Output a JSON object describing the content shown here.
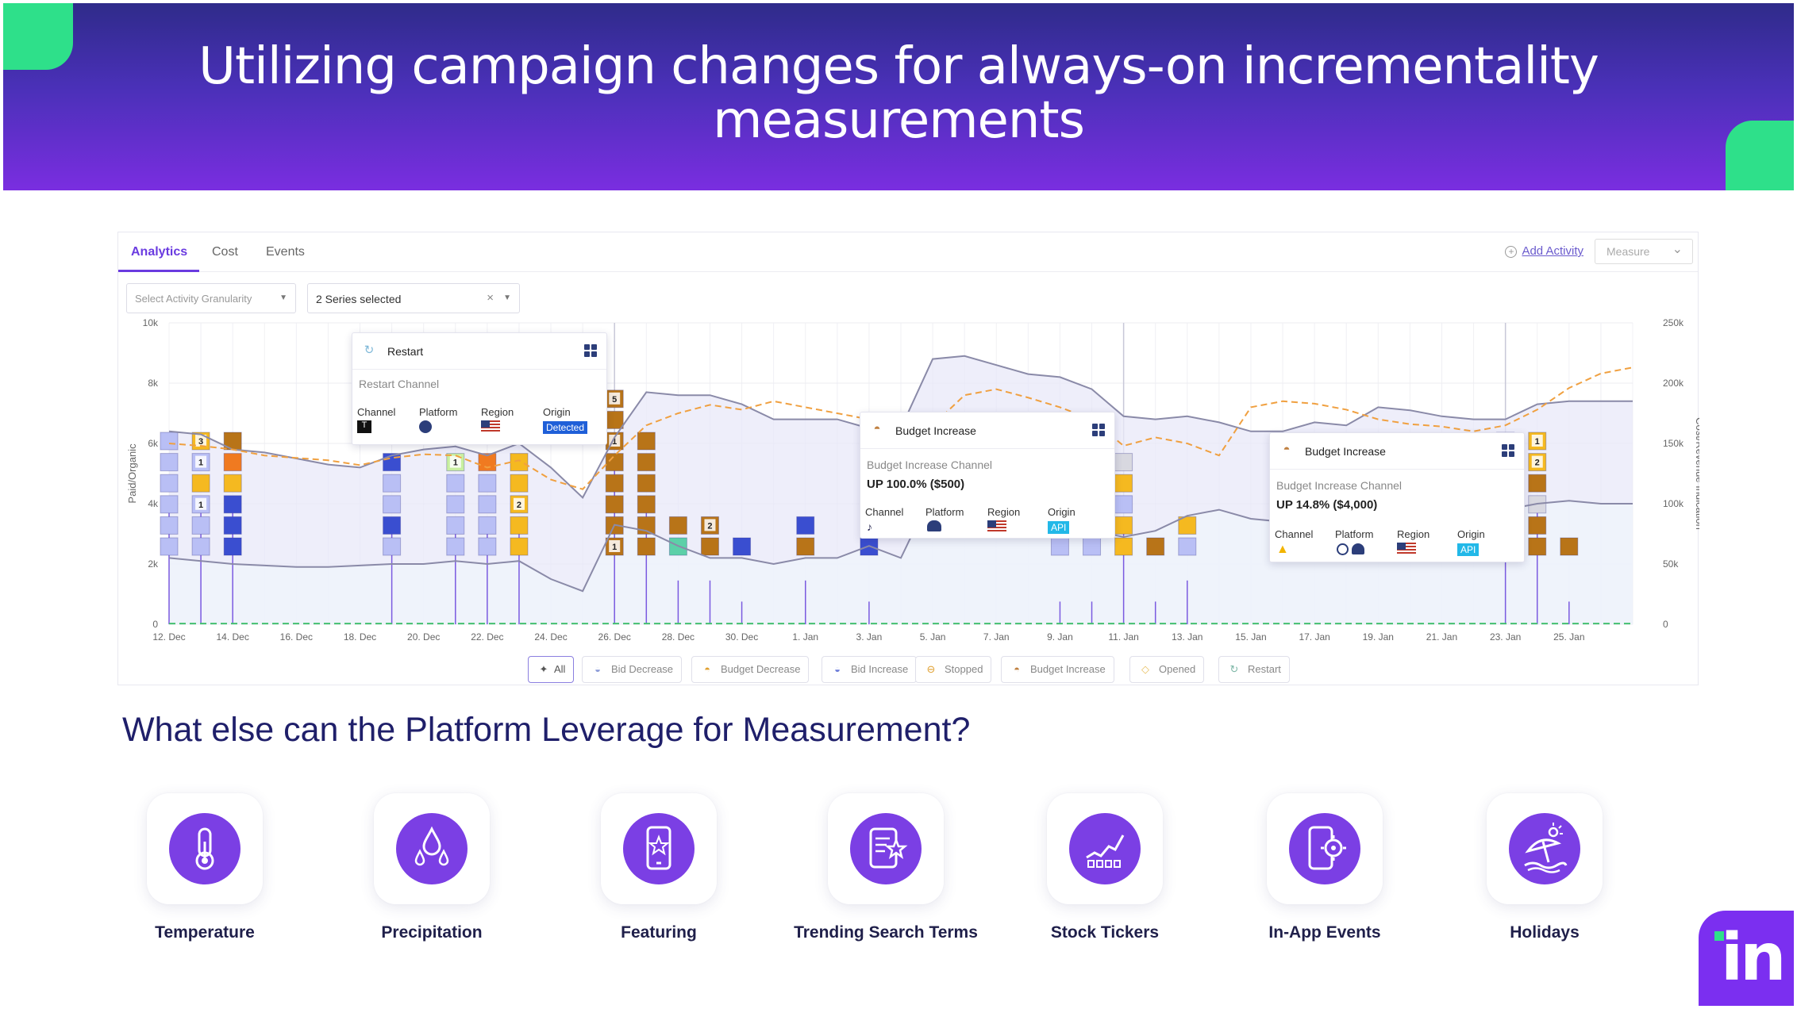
{
  "header": {
    "title_line1": "Utilizing campaign changes for always-on incrementality",
    "title_line2": "measurements",
    "accent_color": "#2ee08a"
  },
  "analytics": {
    "tabs": [
      {
        "label": "Analytics",
        "active": true
      },
      {
        "label": "Cost",
        "active": false
      },
      {
        "label": "Events",
        "active": false
      }
    ],
    "add_activity_label": "Add Activity",
    "measure_select_value": "Measure",
    "granularity_select_placeholder": "Select Activity Granularity",
    "series_select_value": "2 Series selected",
    "series_clear_icon": "×",
    "filter_pills": [
      {
        "label": "All",
        "icon": "✦",
        "active": true
      },
      {
        "label": "Bid Decrease",
        "icon": "◒"
      },
      {
        "label": "Budget Decrease",
        "icon": "◓"
      },
      {
        "label": "Bid Increase",
        "icon": "◒"
      },
      {
        "label": "Stopped",
        "icon": "⊖"
      },
      {
        "label": "Budget Increase",
        "icon": "◓"
      },
      {
        "label": "Opened",
        "icon": "◇"
      },
      {
        "label": "Restart",
        "icon": "↻"
      }
    ],
    "tooltips": [
      {
        "title": "Restart",
        "subtitle": "Restart Channel",
        "headline": "",
        "fields": {
          "channel": "Channel",
          "platform": "Platform",
          "region": "Region",
          "origin": "Origin"
        },
        "origin_value": "Detected",
        "origin_color": "#1f5fd8"
      },
      {
        "title": "Budget Increase",
        "subtitle": "Budget Increase Channel",
        "headline": "UP 100.0% ($500)",
        "fields": {
          "channel": "Channel",
          "platform": "Platform",
          "region": "Region",
          "origin": "Origin"
        },
        "origin_value": "API",
        "origin_color": "#22b8e8"
      },
      {
        "title": "Budget Increase",
        "subtitle": "Budget Increase Channel",
        "headline": "UP 14.8% ($4,000)",
        "fields": {
          "channel": "Channel",
          "platform": "Platform",
          "region": "Region",
          "origin": "Origin"
        },
        "origin_value": "API",
        "origin_color": "#22b8e8"
      }
    ]
  },
  "chart_data": {
    "type": "area",
    "title": "",
    "ylabel_left": "Paid/Organic",
    "ylabel_right": "Cost/Revenue Indication",
    "ylim_left": [
      0,
      10000
    ],
    "ylim_right": [
      0,
      250000
    ],
    "y_ticks_left": [
      "0",
      "2k",
      "4k",
      "6k",
      "8k",
      "10k"
    ],
    "y_ticks_right": [
      "0",
      "50k",
      "100k",
      "150k",
      "200k",
      "250k"
    ],
    "x_tick_labels": [
      "12. Dec",
      "14. Dec",
      "16. Dec",
      "18. Dec",
      "20. Dec",
      "22. Dec",
      "24. Dec",
      "26. Dec",
      "28. Dec",
      "30. Dec",
      "1. Jan",
      "3. Jan",
      "5. Jan",
      "7. Jan",
      "9. Jan",
      "11. Jan",
      "13. Jan",
      "15. Jan",
      "17. Jan",
      "19. Jan",
      "21. Jan",
      "23. Jan",
      "25. Jan"
    ],
    "x_days": [
      0,
      1,
      2,
      3,
      4,
      5,
      6,
      7,
      8,
      9,
      10,
      11,
      12,
      13,
      14,
      15,
      16,
      17,
      18,
      19,
      20,
      21,
      22,
      23,
      24,
      25,
      26,
      27,
      28,
      29,
      30,
      31,
      32,
      33,
      34,
      35,
      36,
      37,
      38,
      39,
      40,
      41,
      42,
      43,
      44,
      45,
      46
    ],
    "series": [
      {
        "name": "Paid",
        "axis": "left",
        "color": "#8a8aa8",
        "values": [
          6400,
          6300,
          5800,
          5700,
          5500,
          5300,
          5200,
          5600,
          5800,
          5900,
          5600,
          6000,
          5200,
          4200,
          6200,
          7700,
          7600,
          7600,
          7300,
          6800,
          6800,
          6800,
          6500,
          6500,
          8800,
          8900,
          8600,
          8300,
          8200,
          7800,
          6900,
          6800,
          6900,
          6700,
          6400,
          6400,
          6700,
          6600,
          7200,
          7100,
          6900,
          6800,
          6800,
          7300,
          7400,
          7400,
          7400
        ]
      },
      {
        "name": "Organic",
        "axis": "left",
        "color": "#8a8aa8",
        "values": [
          2200,
          2100,
          2000,
          1950,
          1900,
          1900,
          1950,
          2000,
          2000,
          2100,
          2000,
          2100,
          1500,
          1100,
          3300,
          3100,
          2600,
          2200,
          2200,
          2000,
          2200,
          2200,
          2600,
          2200,
          4400,
          4200,
          3800,
          3500,
          3400,
          3100,
          2900,
          3100,
          3600,
          3800,
          3500,
          3400,
          3800,
          3700,
          4100,
          4000,
          3800,
          3600,
          3800,
          4000,
          4100,
          4000,
          4000
        ]
      },
      {
        "name": "Cost",
        "axis": "right",
        "color": "#f0a040",
        "dashed": true,
        "values": [
          150000,
          148000,
          145000,
          140000,
          138000,
          136000,
          132000,
          138000,
          141000,
          140000,
          130000,
          136000,
          120000,
          112000,
          140000,
          165000,
          175000,
          182000,
          178000,
          185000,
          180000,
          175000,
          170000,
          160000,
          165000,
          190000,
          195000,
          188000,
          180000,
          170000,
          148000,
          155000,
          150000,
          140000,
          180000,
          185000,
          183000,
          178000,
          170000,
          166000,
          164000,
          160000,
          165000,
          178000,
          196000,
          208000,
          213000
        ]
      },
      {
        "name": "Revenue",
        "axis": "right",
        "color": "#44c070",
        "dashed": true,
        "values": [
          600,
          600,
          600,
          600,
          600,
          600,
          600,
          600,
          600,
          600,
          600,
          600,
          600,
          600,
          600,
          600,
          600,
          600,
          600,
          600,
          600,
          600,
          600,
          600,
          600,
          600,
          600,
          600,
          600,
          600,
          600,
          600,
          600,
          600,
          600,
          600,
          600,
          600,
          600,
          600,
          600,
          600,
          600,
          600,
          600,
          600,
          600
        ]
      }
    ],
    "event_markers": [
      {
        "day": 0,
        "stack": [
          "#b9bff5",
          "#b9bff5",
          "#b9bff5",
          "#b9bff5",
          "#b9bff5",
          "#b9bff5"
        ]
      },
      {
        "day": 1,
        "stack": [
          "#b9bff5",
          "#b9bff5",
          "#b9bff5",
          "#f5b920",
          "#b9bff5",
          "#f5b920"
        ],
        "labels": {
          "2": "1",
          "4": "1",
          "5": "3"
        }
      },
      {
        "day": 2,
        "stack": [
          "#3a4ed0",
          "#3a4ed0",
          "#3a4ed0",
          "#f5b920",
          "#f07a20",
          "#b87418"
        ]
      },
      {
        "day": 7,
        "stack": [
          "#b9bff5",
          "#3a4ed0",
          "#b9bff5",
          "#b9bff5",
          "#3a4ed0"
        ]
      },
      {
        "day": 9,
        "stack": [
          "#b9bff5",
          "#b9bff5",
          "#b9bff5",
          "#b9bff5",
          "#c8f0a0"
        ],
        "labels": {
          "4": "1"
        }
      },
      {
        "day": 10,
        "stack": [
          "#b9bff5",
          "#b9bff5",
          "#b9bff5",
          "#b9bff5",
          "#f07a20"
        ]
      },
      {
        "day": 11,
        "stack": [
          "#f5b920",
          "#f5b920",
          "#f5b920",
          "#f5b920",
          "#f5b920"
        ],
        "labels": {
          "2": "2"
        }
      },
      {
        "day": 14,
        "stack": [
          "#b87418",
          "#b87418",
          "#b87418",
          "#b87418",
          "#b87418",
          "#b87418",
          "#b87418",
          "#b87418"
        ],
        "labels": {
          "0": "1",
          "5": "1",
          "7": "5"
        }
      },
      {
        "day": 15,
        "stack": [
          "#b87418",
          "#b87418",
          "#b87418",
          "#b87418",
          "#b87418",
          "#b87418"
        ]
      },
      {
        "day": 16,
        "stack": [
          "#5cd0a8",
          "#b87418"
        ]
      },
      {
        "day": 17,
        "stack": [
          "#b87418",
          "#b87418"
        ],
        "labels": {
          "1": "2"
        }
      },
      {
        "day": 18,
        "stack": [
          "#3a4ed0"
        ]
      },
      {
        "day": 20,
        "stack": [
          "#b87418",
          "#3a4ed0"
        ]
      },
      {
        "day": 22,
        "stack": [
          "#3a4ed0"
        ]
      },
      {
        "day": 28,
        "stack": [
          "#b9bff5"
        ]
      },
      {
        "day": 29,
        "stack": [
          "#b9bff5"
        ]
      },
      {
        "day": 30,
        "stack": [
          "#f5b920",
          "#f5b920",
          "#b9bff5",
          "#f5b920",
          "#d8d8e0"
        ]
      },
      {
        "day": 31,
        "stack": [
          "#b87418"
        ]
      },
      {
        "day": 32,
        "stack": [
          "#b9bff5",
          "#f5b920"
        ]
      },
      {
        "day": 42,
        "stack": [
          "#3a4ed0",
          "#3a4ed0",
          "#3a4ed0",
          "#3a4ed0",
          "#3a4ed0",
          "#3a4ed0"
        ]
      },
      {
        "day": 43,
        "stack": [
          "#b87418",
          "#b87418",
          "#d8d8e0",
          "#b87418",
          "#f5b920",
          "#f5b920"
        ],
        "labels": {
          "4": "2",
          "5": "1"
        }
      },
      {
        "day": 44,
        "stack": [
          "#b87418"
        ]
      }
    ],
    "grid": true,
    "legend": "bottom"
  },
  "platform_section": {
    "heading": "What else can the Platform Leverage for Measurement?",
    "items": [
      {
        "label": "Temperature",
        "icon": "thermometer-icon"
      },
      {
        "label": "Precipitation",
        "icon": "droplets-icon"
      },
      {
        "label": "Featuring",
        "icon": "phone-star-icon"
      },
      {
        "label": "Trending Search Terms",
        "icon": "document-star-icon"
      },
      {
        "label": "Stock Tickers",
        "icon": "stock-chart-icon"
      },
      {
        "label": "In-App Events",
        "icon": "phone-gear-icon"
      },
      {
        "label": "Holidays",
        "icon": "umbrella-sun-icon"
      }
    ]
  },
  "brand": {
    "logo_text": "in",
    "logo_color": "#7b2ff0"
  }
}
